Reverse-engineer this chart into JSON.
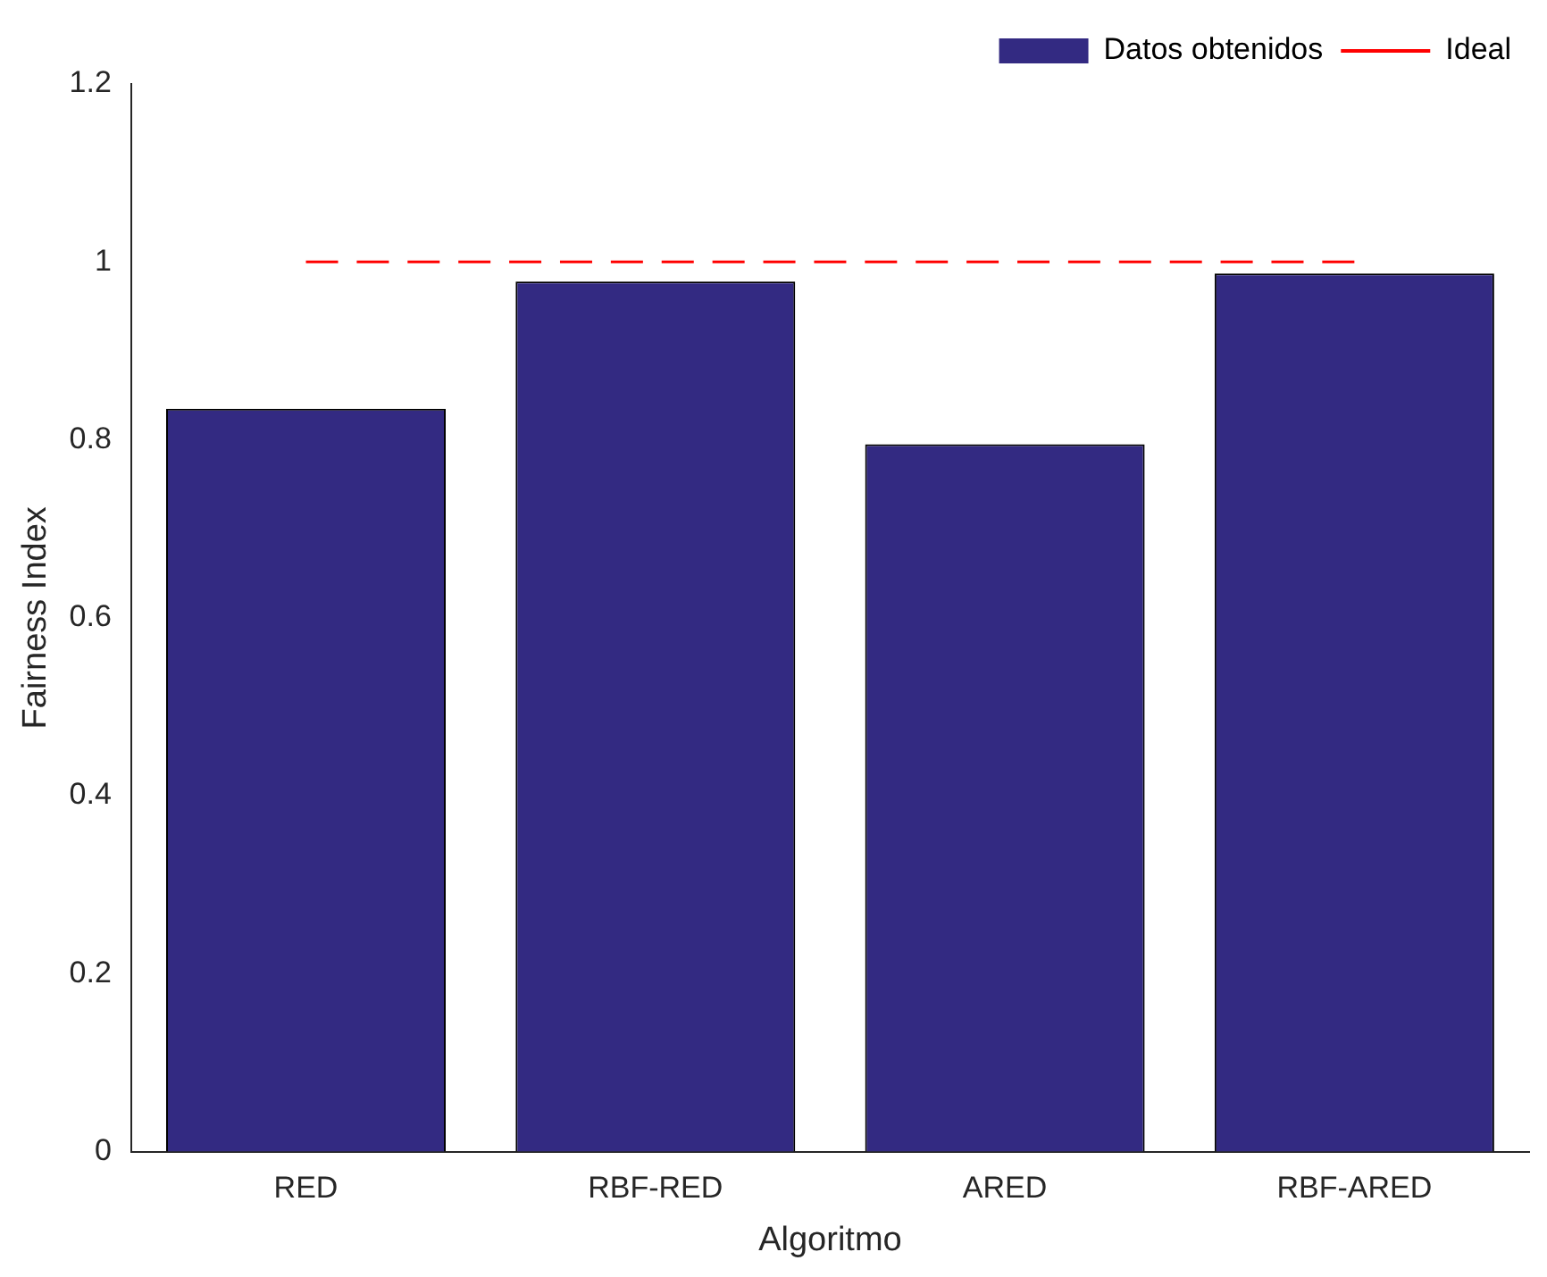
{
  "chart_data": {
    "type": "bar",
    "xlabel": "Algoritmo",
    "ylabel": "Fairness Index",
    "categories": [
      "RED",
      "RBF-RED",
      "ARED",
      "RBF-ARED"
    ],
    "series": [
      {
        "name": "Datos obtenidos",
        "color": "#332a82",
        "values": [
          0.835,
          0.978,
          0.795,
          0.987
        ]
      },
      {
        "name": "Ideal",
        "type": "line",
        "color": "#ff0000",
        "values": [
          1,
          1,
          1,
          1
        ],
        "line_style": "dashed"
      }
    ],
    "ylim": [
      0,
      1.2
    ],
    "yticks": [
      0,
      0.2,
      0.4,
      0.6,
      0.8,
      1,
      1.2
    ],
    "grid": false,
    "legend": "top right"
  }
}
